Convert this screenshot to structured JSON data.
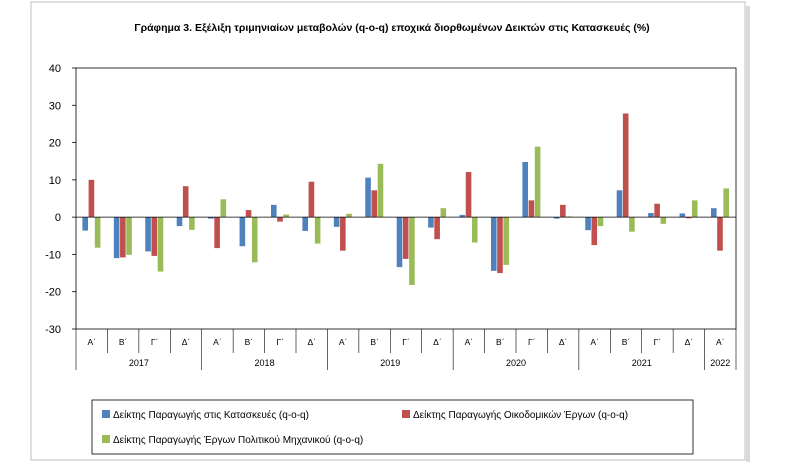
{
  "chart_data": {
    "type": "bar",
    "title": "Γράφημα 3. Εξέλιξη τριμηνιαίων μεταβολών (q-o-q) εποχικά διορθωμένων Δεικτών στις Κατασκευές (%)",
    "xlabel": "",
    "ylabel": "",
    "ylim": [
      -30,
      40
    ],
    "yticks": [
      40,
      30,
      20,
      10,
      0,
      -10,
      -20,
      -30
    ],
    "grid": false,
    "legend_position": "bottom",
    "categories": [
      "Α΄",
      "Β΄",
      "Γ΄",
      "Δ΄",
      "Α΄",
      "Β΄",
      "Γ΄",
      "Δ΄",
      "Α΄",
      "Β΄",
      "Γ΄",
      "Δ΄",
      "Α΄",
      "Β΄",
      "Γ΄",
      "Δ΄",
      "Α΄",
      "Β΄",
      "Γ΄",
      "Δ΄",
      "Α΄"
    ],
    "year_groups": [
      {
        "label": "2017",
        "span": 4
      },
      {
        "label": "2018",
        "span": 4
      },
      {
        "label": "2019",
        "span": 4
      },
      {
        "label": "2020",
        "span": 4
      },
      {
        "label": "2021",
        "span": 4
      },
      {
        "label": "2022",
        "span": 1
      }
    ],
    "series": [
      {
        "name": "Δείκτης Παραγωγής στις Κατασκευές (q-o-q)",
        "color": "#4f81bd",
        "values": [
          -3.6,
          -11.0,
          -9.2,
          -2.4,
          -0.4,
          -7.8,
          3.3,
          -3.7,
          -2.6,
          10.6,
          -13.4,
          -2.8,
          0.6,
          -14.4,
          14.8,
          -0.4,
          -3.5,
          7.2,
          1.1,
          1.0,
          2.4
        ]
      },
      {
        "name": "Δείκτης Παραγωγής Οικοδομικών Έργων (q-o-q)",
        "color": "#c0504d",
        "values": [
          10.0,
          -10.8,
          -10.4,
          8.3,
          -8.3,
          1.9,
          -1.2,
          9.5,
          -9.0,
          7.2,
          -11.2,
          -5.9,
          12.1,
          -15.0,
          4.5,
          3.3,
          -7.5,
          27.8,
          3.6,
          -0.3,
          -9.0
        ]
      },
      {
        "name": "Δείκτης Παραγωγής Έργων Πολιτικού Μηχανικού (q-o-q)",
        "color": "#9bbb59",
        "values": [
          -8.2,
          -10.1,
          -14.6,
          -3.4,
          4.8,
          -12.1,
          0.7,
          -7.1,
          0.9,
          14.3,
          -18.2,
          2.4,
          -6.8,
          -12.8,
          18.9,
          0.2,
          -2.4,
          -3.9,
          -1.8,
          4.5,
          7.7
        ]
      }
    ]
  }
}
